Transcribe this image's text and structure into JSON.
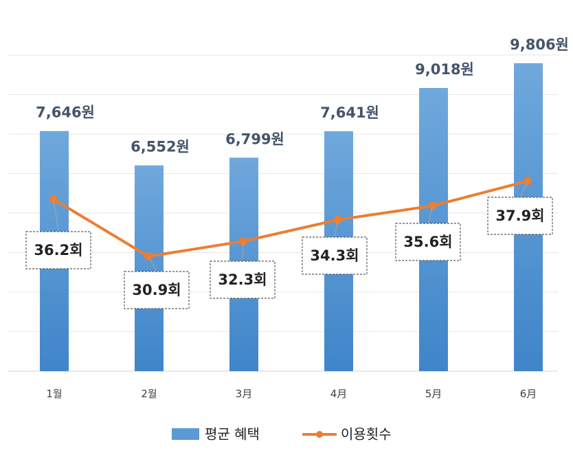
{
  "chart_data": {
    "type": "bar",
    "categories": [
      "1월",
      "2월",
      "3月",
      "4月",
      "5月",
      "6月"
    ],
    "series": [
      {
        "name": "평균 혜택",
        "type": "bar",
        "values": [
          7646,
          6552,
          6799,
          7641,
          9018,
          9806
        ],
        "labels": [
          "7,646원",
          "6,552원",
          "6,799원",
          "7,641원",
          "9,018원",
          "9,806원"
        ],
        "color": "#5b9bd5"
      },
      {
        "name": "이용횟수",
        "type": "line",
        "values": [
          36.2,
          30.9,
          32.3,
          34.3,
          35.6,
          37.9
        ],
        "labels": [
          "36.2회",
          "30.9회",
          "32.3회",
          "34.3회",
          "35.6회",
          "37.9회"
        ],
        "color": "#ed7d31"
      }
    ],
    "grid": true,
    "legend": "bottom"
  }
}
